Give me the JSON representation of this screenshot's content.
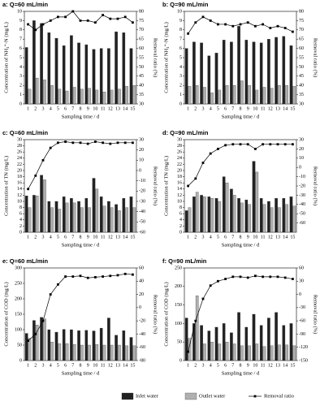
{
  "chart_data": [
    {
      "type": "bar",
      "title": "a: Q=60 mL/min",
      "x_label": "Sampling time / d",
      "y_label": "Concentration of NH₄⁺-N (mg/L)",
      "y2_label": "Removal ratio (%)",
      "categories": [
        "1",
        "2",
        "3",
        "4",
        "5",
        "6",
        "7",
        "8",
        "9",
        "10",
        "11",
        "12",
        "13",
        "14",
        "15"
      ],
      "ylim": [
        0,
        10
      ],
      "yticks": [
        0,
        1,
        2,
        3,
        4,
        5,
        6,
        7,
        8,
        9,
        10
      ],
      "y2lim": [
        30,
        80
      ],
      "y2ticks": [
        30,
        35,
        40,
        45,
        50,
        55,
        60,
        65,
        70,
        75,
        80
      ],
      "series": [
        {
          "name": "Inlet water",
          "color": "#222222",
          "values": [
            6.1,
            9.0,
            8.7,
            7.7,
            7.1,
            6.3,
            7.4,
            6.6,
            6.4,
            5.9,
            6.0,
            6.0,
            7.8,
            7.7,
            6.0
          ]
        },
        {
          "name": "Outlet water",
          "color": "#b0b0b0",
          "values": [
            1.6,
            2.8,
            2.6,
            2.0,
            1.6,
            1.4,
            1.8,
            1.6,
            1.7,
            1.5,
            1.3,
            1.5,
            1.6,
            1.9,
            2.0
          ]
        },
        {
          "name": "Removal ratio",
          "color": "#000000",
          "axis": "y2",
          "values": [
            73,
            70,
            73,
            75,
            77,
            77,
            80,
            75,
            75,
            74,
            78,
            76,
            76,
            77,
            74
          ]
        }
      ]
    },
    {
      "type": "bar",
      "title": "b: Q=90 mL/min",
      "x_label": "Sampling time / d",
      "y_label": "Concentration of NH₄⁺-N (mg/L)",
      "y2_label": "Removal ratio (%)",
      "categories": [
        "1",
        "2",
        "3",
        "4",
        "5",
        "6",
        "7",
        "8",
        "9",
        "10",
        "11",
        "12",
        "13",
        "14",
        "15"
      ],
      "ylim": [
        0,
        10
      ],
      "yticks": [
        0,
        1,
        2,
        3,
        4,
        5,
        6,
        7,
        8,
        9,
        10
      ],
      "y2lim": [
        30,
        80
      ],
      "y2ticks": [
        30,
        35,
        40,
        45,
        50,
        55,
        60,
        65,
        70,
        75,
        80
      ],
      "series": [
        {
          "name": "Inlet water",
          "color": "#222222",
          "values": [
            6.0,
            6.7,
            6.6,
            5.2,
            5.5,
            6.9,
            6.7,
            8.4,
            6.9,
            6.7,
            6.6,
            7.0,
            7.2,
            7.3,
            6.3
          ]
        },
        {
          "name": "Outlet water",
          "color": "#b0b0b0",
          "values": [
            1.9,
            2.0,
            1.8,
            1.2,
            1.5,
            2.0,
            2.0,
            2.5,
            2.0,
            1.5,
            1.8,
            1.7,
            2.0,
            2.0,
            1.9
          ]
        },
        {
          "name": "Removal ratio",
          "color": "#000000",
          "axis": "y2",
          "values": [
            68,
            74,
            77,
            75,
            73,
            73,
            72,
            73,
            74,
            72,
            73,
            71,
            72,
            71,
            69
          ]
        }
      ]
    },
    {
      "type": "bar",
      "title": "c: Q=60 mL/min",
      "x_label": "Sampling time / d",
      "y_label": "Concentration of TN (mg/L)",
      "y2_label": "Removal ratio (%)",
      "categories": [
        "1",
        "2",
        "3",
        "4",
        "5",
        "6",
        "7",
        "8",
        "9",
        "10",
        "11",
        "12",
        "13",
        "14",
        "15"
      ],
      "ylim": [
        0,
        30
      ],
      "yticks": [
        0,
        2,
        4,
        6,
        8,
        10,
        12,
        14,
        16,
        18,
        20,
        22,
        24,
        26,
        28,
        30
      ],
      "y2lim": [
        -60,
        30
      ],
      "y2ticks": [
        -60,
        -50,
        -40,
        -30,
        -20,
        -10,
        0,
        10,
        20,
        30
      ],
      "series": [
        {
          "name": "Inlet water",
          "color": "#222222",
          "values": [
            11.8,
            12.0,
            18.5,
            10.0,
            10.0,
            11.5,
            11.0,
            10.0,
            11.0,
            17.5,
            11.5,
            10.0,
            9.0,
            11.0,
            11.5
          ]
        },
        {
          "name": "Outlet water",
          "color": "#b0b0b0",
          "values": [
            8.0,
            11.8,
            17.0,
            8.0,
            7.5,
            9.5,
            9.5,
            8.0,
            8.0,
            14.0,
            8.5,
            8.0,
            7.0,
            8.0,
            8.0
          ]
        },
        {
          "name": "Removal ratio",
          "color": "#000000",
          "axis": "y2",
          "values": [
            -18,
            -5,
            10,
            22,
            27,
            28,
            27,
            27,
            26,
            28,
            27,
            26,
            27,
            27,
            27
          ]
        }
      ]
    },
    {
      "type": "bar",
      "title": "d: Q=90 mL/min",
      "x_label": "Sampling time / d",
      "y_label": "Concentration of TN (mg/L)",
      "y2_label": "Removal ratio (%)",
      "categories": [
        "1",
        "2",
        "3",
        "4",
        "5",
        "6",
        "7",
        "8",
        "9",
        "10",
        "11",
        "12",
        "13",
        "14",
        "15"
      ],
      "ylim": [
        0,
        30
      ],
      "yticks": [
        0,
        2,
        4,
        6,
        8,
        10,
        12,
        14,
        16,
        18,
        20,
        22,
        24,
        26,
        28,
        30
      ],
      "y2lim": [
        -70,
        30
      ],
      "y2ticks": [
        -60,
        -50,
        -40,
        -30,
        -20,
        -10,
        0,
        10,
        20,
        30
      ],
      "series": [
        {
          "name": "Inlet water",
          "color": "#222222",
          "values": [
            7,
            11.5,
            12,
            11.5,
            11,
            18,
            14,
            11,
            10.5,
            23,
            11,
            10,
            11,
            11,
            11.5
          ]
        },
        {
          "name": "Outlet water",
          "color": "#b0b0b0",
          "values": [
            8,
            13,
            11.5,
            11,
            10,
            16,
            12,
            9.5,
            9,
            19.5,
            9,
            8,
            8,
            9,
            8.5
          ]
        },
        {
          "name": "Removal ratio",
          "color": "#000000",
          "axis": "y2",
          "values": [
            -20,
            -12,
            5,
            15,
            20,
            24,
            25,
            25,
            25,
            20,
            25,
            25,
            25,
            25,
            25
          ]
        }
      ]
    },
    {
      "type": "bar",
      "title": "e: Q=60 mL/min",
      "x_label": "Sampling time / d",
      "y_label": "Concentration of COD (mg/L)",
      "y2_label": "Removal ratio (%)",
      "categories": [
        "1",
        "2",
        "3",
        "4",
        "5",
        "6",
        "7",
        "8",
        "9",
        "10",
        "11",
        "12",
        "13",
        "14",
        "15"
      ],
      "ylim": [
        0,
        300
      ],
      "yticks": [
        0,
        50,
        100,
        150,
        200,
        250,
        300
      ],
      "y2lim": [
        -80,
        60
      ],
      "y2ticks": [
        -80,
        -60,
        -40,
        -20,
        0,
        20,
        40,
        60
      ],
      "series": [
        {
          "name": "Inlet water",
          "color": "#222222",
          "values": [
            88,
            130,
            140,
            100,
            92,
            101,
            100,
            97,
            98,
            96,
            105,
            138,
            82,
            97,
            75
          ]
        },
        {
          "name": "Outlet water",
          "color": "#b0b0b0",
          "values": [
            72,
            115,
            135,
            60,
            55,
            55,
            52,
            50,
            50,
            52,
            50,
            50,
            50,
            48,
            48
          ]
        },
        {
          "name": "Removal ratio",
          "color": "#000000",
          "axis": "y2",
          "values": [
            -50,
            -40,
            -20,
            20,
            35,
            47,
            47,
            48,
            45,
            46,
            47,
            48,
            49,
            51,
            50
          ]
        }
      ]
    },
    {
      "type": "bar",
      "title": "f: Q=90 mL/min",
      "x_label": "Sampling time / d",
      "y_label": "Concentration of COD (mg/L)",
      "y2_label": "Removal ratio (%)",
      "categories": [
        "1",
        "2",
        "3",
        "4",
        "5",
        "6",
        "7",
        "8",
        "9",
        "10",
        "11",
        "12",
        "13",
        "14",
        "15"
      ],
      "ylim": [
        0,
        250
      ],
      "yticks": [
        0,
        50,
        100,
        150,
        200,
        250
      ],
      "y2lim": [
        -150,
        60
      ],
      "y2ticks": [
        -150,
        -120,
        -90,
        -60,
        -30,
        0,
        30,
        60
      ],
      "series": [
        {
          "name": "Inlet water",
          "color": "#222222",
          "values": [
            115,
            100,
            95,
            80,
            90,
            100,
            75,
            130,
            90,
            125,
            95,
            115,
            130,
            95,
            100
          ]
        },
        {
          "name": "Outlet water",
          "color": "#b0b0b0",
          "values": [
            60,
            175,
            45,
            50,
            45,
            50,
            45,
            40,
            40,
            45,
            38,
            40,
            42,
            42,
            40
          ]
        },
        {
          "name": "Removal ratio",
          "color": "#000000",
          "axis": "y2",
          "values": [
            -130,
            -60,
            -10,
            20,
            30,
            35,
            40,
            40,
            38,
            42,
            40,
            40,
            40,
            38,
            35
          ]
        }
      ]
    }
  ]
}
